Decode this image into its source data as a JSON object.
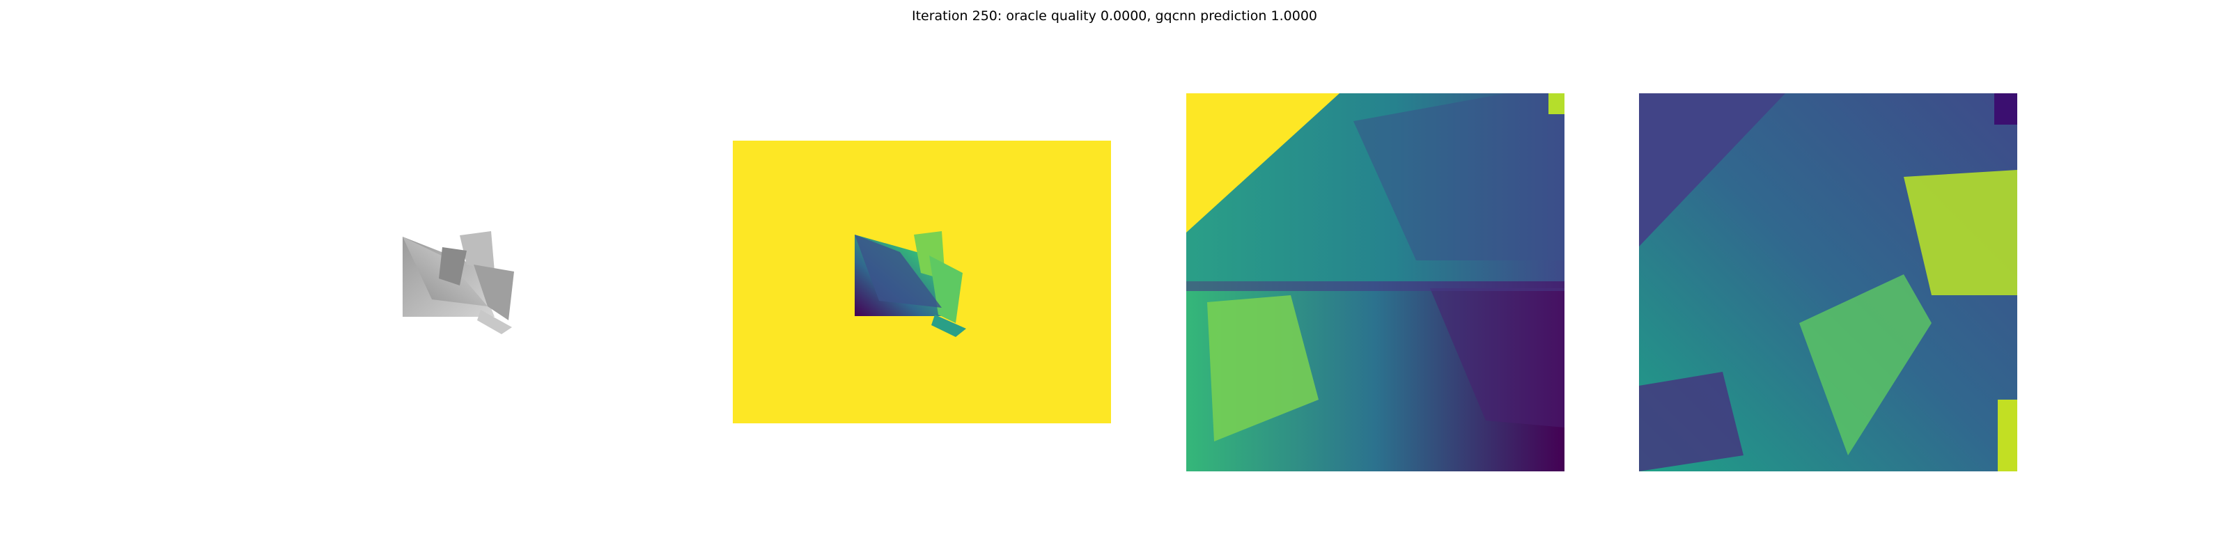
{
  "figure": {
    "title": "Iteration 250: oracle quality 0.0000, gqcnn prediction 1.0000",
    "panels": [
      {
        "content": "rendered grey object"
      },
      {
        "content": "depth image viridis with object"
      },
      {
        "content": "depth crop 1 viridis"
      },
      {
        "content": "depth crop 2 viridis"
      }
    ]
  },
  "colors": {
    "viridis_yellow": "#fde725",
    "viridis_green": "#35b779",
    "viridis_teal": "#21918c",
    "viridis_blue": "#31688e",
    "viridis_purple": "#443983",
    "viridis_dark": "#440154",
    "lime": "#90d743",
    "grey_light": "#d8d8d8",
    "grey_mid": "#a8a8a8",
    "grey_dark": "#7a7a7a"
  }
}
